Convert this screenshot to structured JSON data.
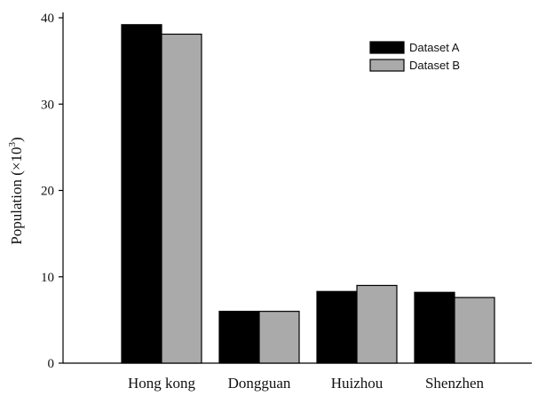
{
  "chart_data": {
    "type": "bar",
    "categories": [
      "Hong kong",
      "Dongguan",
      "Huizhou",
      "Shenzhen"
    ],
    "series": [
      {
        "name": "Dataset A",
        "values": [
          39.2,
          6.0,
          8.3,
          8.2
        ],
        "color": "#000000"
      },
      {
        "name": "Dataset B",
        "values": [
          38.1,
          6.0,
          9.0,
          7.6
        ],
        "color": "#aaaaaa"
      }
    ],
    "ylabel_main": "Population (×10",
    "ylabel_exp": "3",
    "ylabel_close": ")",
    "ylim": [
      0,
      40
    ],
    "yticks": [
      0,
      10,
      20,
      30,
      40
    ],
    "ytick_labels": [
      "0",
      "10",
      "20",
      "30",
      "40"
    ],
    "grid": false,
    "legend_position": "top-right"
  }
}
